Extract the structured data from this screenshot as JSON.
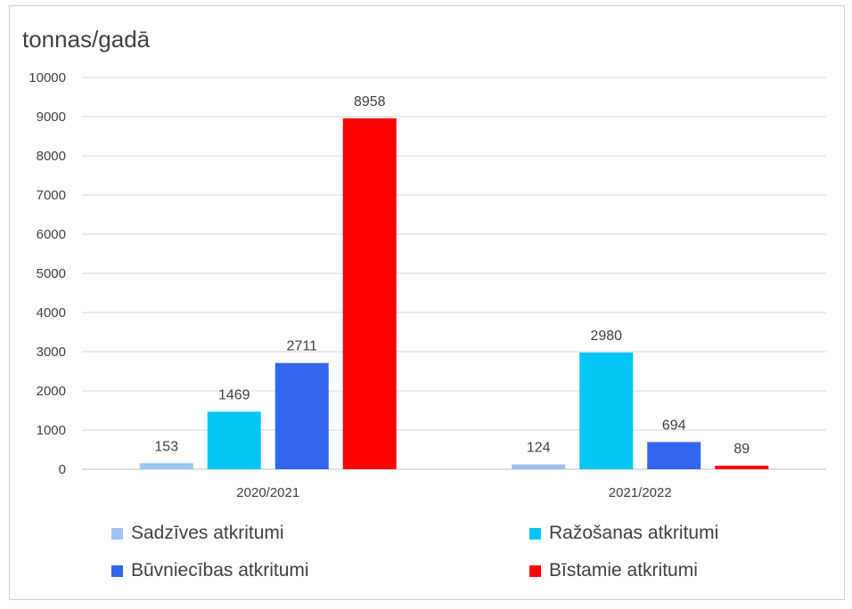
{
  "chart_data": {
    "type": "bar",
    "ylabel": "tonnas/gadā",
    "categories": [
      "2020/2021",
      "2021/2022"
    ],
    "ylim": [
      0,
      10000
    ],
    "yticks": [
      0,
      1000,
      2000,
      3000,
      4000,
      5000,
      6000,
      7000,
      8000,
      9000,
      10000
    ],
    "grid": true,
    "legend_position": "bottom",
    "series": [
      {
        "name": "Sadzīves atkritumi",
        "color": "#9DC3F0",
        "values": [
          153,
          124
        ]
      },
      {
        "name": "Ražošanas atkritumi",
        "color": "#00C5F5",
        "values": [
          1469,
          2980
        ]
      },
      {
        "name": "Būvniecības atkritumi",
        "color": "#3366EE",
        "values": [
          2711,
          694
        ]
      },
      {
        "name": "Bīstamie atkritumi",
        "color": "#FF0000",
        "values": [
          8958,
          89
        ]
      }
    ]
  }
}
